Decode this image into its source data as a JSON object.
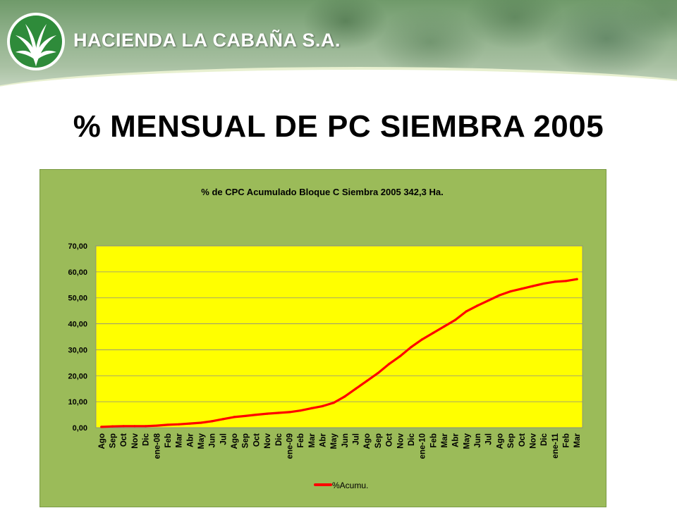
{
  "header": {
    "company_name": "HACIENDA LA CABAÑA S.A.",
    "logo_icon": "palm-leaf-logo-icon"
  },
  "page_title": "% MENSUAL DE PC SIEMBRA 2005",
  "colors": {
    "chart_background": "#9bbb59",
    "plot_background": "#ffff00",
    "series_line": "#ff0000",
    "logo_green": "#2e8b3a"
  },
  "chart_data": {
    "type": "line",
    "title": "% de CPC Acumulado Bloque C Siembra 2005 342,3 Ha.",
    "xlabel": "",
    "ylabel": "",
    "ylim": [
      0,
      70
    ],
    "yticks": [
      "0,00",
      "10,00",
      "20,00",
      "30,00",
      "40,00",
      "50,00",
      "60,00",
      "70,00"
    ],
    "grid": true,
    "legend_position": "bottom",
    "categories": [
      "Ago",
      "Sep",
      "Oct",
      "Nov",
      "Dic",
      "ene-08",
      "Feb",
      "Mar",
      "Abr",
      "May",
      "Jun",
      "Jul",
      "Ago",
      "Sep",
      "Oct",
      "Nov",
      "Dic",
      "ene-09",
      "Feb",
      "Mar",
      "Abr",
      "May",
      "Jun",
      "Jul",
      "Ago",
      "Sep",
      "Oct",
      "Nov",
      "Dic",
      "ene-10",
      "Feb",
      "Mar",
      "Abr",
      "May",
      "Jun",
      "Jul",
      "Ago",
      "Sep",
      "Oct",
      "Nov",
      "Dic",
      "ene-11",
      "Feb",
      "Mar"
    ],
    "series": [
      {
        "name": "%Acumu.",
        "values": [
          0.3,
          0.5,
          0.6,
          0.6,
          0.6,
          0.8,
          1.1,
          1.3,
          1.6,
          1.9,
          2.5,
          3.3,
          4.1,
          4.5,
          5.0,
          5.4,
          5.7,
          6.0,
          6.6,
          7.5,
          8.3,
          9.6,
          12.0,
          15.0,
          18.0,
          21.0,
          24.5,
          27.5,
          31.0,
          34.0,
          36.5,
          39.0,
          41.5,
          44.8,
          47.0,
          49.0,
          51.0,
          52.5,
          53.5,
          54.5,
          55.5,
          56.2,
          56.5,
          57.2
        ]
      }
    ]
  }
}
